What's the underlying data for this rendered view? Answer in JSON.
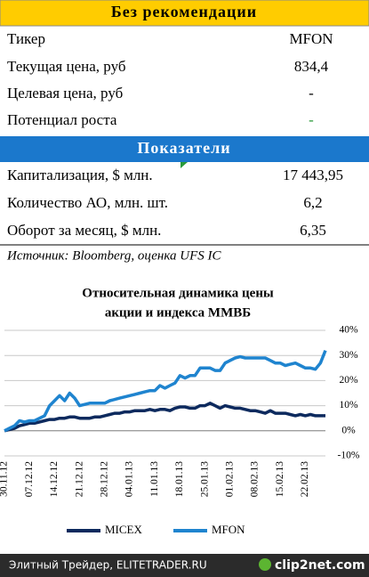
{
  "recommendation": {
    "title": "Без рекомендации",
    "rows": [
      [
        "Тикер",
        "MFON"
      ],
      [
        "Текущая цена, руб",
        "834,4"
      ],
      [
        "Целевая цена, руб",
        "-"
      ],
      [
        "Потенциал роста",
        "-"
      ]
    ]
  },
  "indicators": {
    "title": "Показатели",
    "rows": [
      [
        "Капитализация, $ млн.",
        "17 443,95"
      ],
      [
        "Количество АО, млн. шт.",
        "6,2"
      ],
      [
        "Оборот за месяц, $ млн.",
        "6,35"
      ]
    ]
  },
  "source": "Источник: Bloomberg, оценка UFS IC",
  "chart_data": {
    "type": "line",
    "title": [
      "Относительная динамика цены",
      "акции и индекса ММВБ"
    ],
    "categories": [
      "30.11.12",
      null,
      null,
      null,
      null,
      "07.12.12",
      null,
      null,
      null,
      null,
      "14.12.12",
      null,
      null,
      null,
      null,
      "21.12.12",
      null,
      null,
      null,
      null,
      "28.12.12",
      null,
      null,
      null,
      null,
      "04.01.13",
      null,
      null,
      null,
      null,
      "11.01.13",
      null,
      null,
      null,
      null,
      "18.01.13",
      null,
      null,
      null,
      null,
      "25.01.13",
      null,
      null,
      null,
      null,
      "01.02.13",
      null,
      null,
      null,
      null,
      "08.02.13",
      null,
      null,
      null,
      null,
      "15.02.13",
      null,
      null,
      null,
      null,
      "22.02.13",
      null,
      null,
      null,
      null
    ],
    "series": [
      {
        "name": "MICEX",
        "color": "#0d2a5e",
        "values": [
          0,
          0.5,
          1,
          2,
          2.5,
          3,
          3,
          3.5,
          4,
          4.5,
          4.5,
          5,
          5,
          5.5,
          5.5,
          5,
          5,
          5,
          5.5,
          5.5,
          6,
          6.5,
          7,
          7,
          7.5,
          7.5,
          8,
          8,
          8,
          8.5,
          8,
          8.5,
          8.5,
          8,
          9,
          9.5,
          9.5,
          9,
          9,
          10,
          10,
          11,
          10,
          9,
          10,
          9.5,
          9,
          9,
          8.5,
          8,
          8,
          7.5,
          7,
          8,
          7,
          7,
          7,
          6.5,
          6,
          6.5,
          6,
          6.5,
          6,
          6,
          6
        ]
      },
      {
        "name": "MFON",
        "color": "#1f84cf",
        "values": [
          0,
          1,
          2,
          4,
          3.5,
          4,
          4,
          5,
          6,
          10,
          12,
          14,
          12,
          15,
          13,
          10,
          10.5,
          11,
          11,
          11,
          11,
          12,
          12.5,
          13,
          13.5,
          14,
          14.5,
          15,
          15.5,
          16,
          16,
          18,
          17,
          18,
          19,
          22,
          21,
          22,
          22,
          25,
          25,
          25,
          24,
          24,
          27,
          28,
          29,
          29.5,
          29,
          29,
          29,
          29,
          29,
          28,
          27,
          27,
          26,
          26.5,
          27,
          26,
          25,
          25,
          24.5,
          27,
          32
        ]
      }
    ],
    "ylim": [
      -10,
      40
    ],
    "yticks": [
      {
        "value": -10,
        "label": "-10%"
      },
      {
        "value": 0,
        "label": "0%"
      },
      {
        "value": 10,
        "label": "10%"
      },
      {
        "value": 20,
        "label": "20%"
      },
      {
        "value": 30,
        "label": "30%"
      },
      {
        "value": 40,
        "label": "40%"
      }
    ],
    "grid": true
  },
  "footer": {
    "site": "Элитный Трейдер, ELITETRADER.RU",
    "logo": "clip2net.com"
  }
}
